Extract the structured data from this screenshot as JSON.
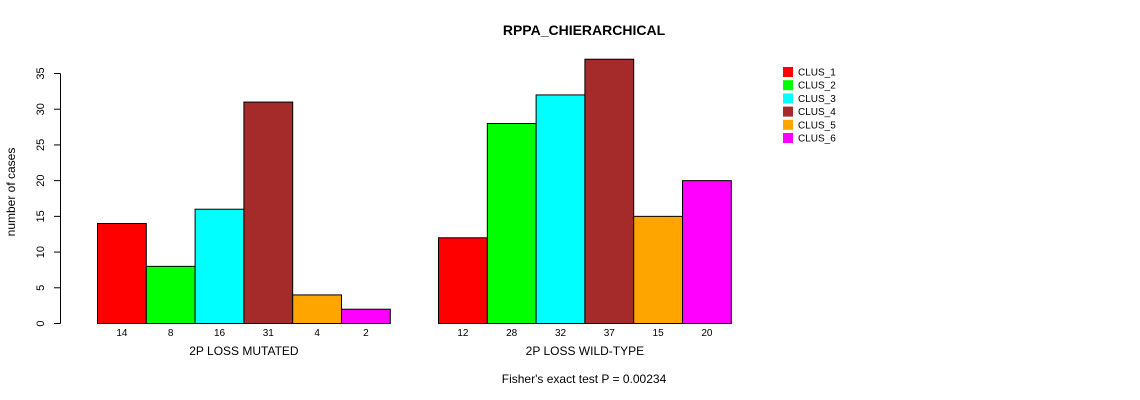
{
  "chart_data": {
    "type": "bar",
    "title": "RPPA_CHIERARCHICAL",
    "ylabel": "number of cases",
    "ylim": [
      0,
      35
    ],
    "yticks": [
      0,
      5,
      10,
      15,
      20,
      25,
      30,
      35
    ],
    "legend_position": "top-right",
    "series": [
      {
        "name": "CLUS_1",
        "color": "#ff0000"
      },
      {
        "name": "CLUS_2",
        "color": "#00ff00"
      },
      {
        "name": "CLUS_3",
        "color": "#00ffff"
      },
      {
        "name": "CLUS_4",
        "color": "#a52a2a"
      },
      {
        "name": "CLUS_5",
        "color": "#ffa500"
      },
      {
        "name": "CLUS_6",
        "color": "#ff00ff"
      }
    ],
    "groups": [
      {
        "label": "2P LOSS MUTATED",
        "values": [
          14,
          8,
          16,
          31,
          4,
          2
        ]
      },
      {
        "label": "2P LOSS WILD-TYPE",
        "values": [
          12,
          28,
          32,
          37,
          15,
          20
        ]
      }
    ],
    "footnote": "Fisher's exact test P = 0.00234"
  }
}
